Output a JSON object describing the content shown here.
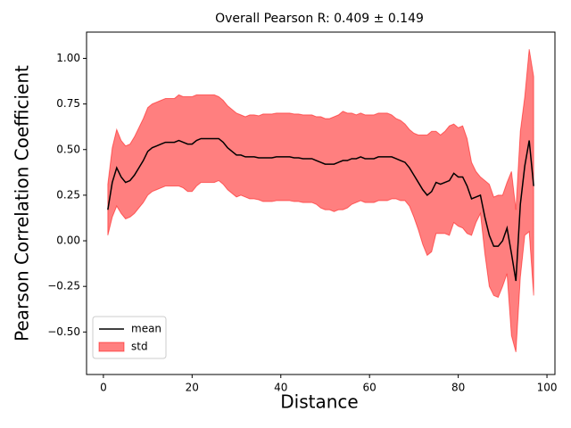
{
  "chart_data": {
    "type": "line",
    "title": "Overall Pearson R: 0.409 ± 0.149",
    "x_label": "Distance",
    "y_label": "Pearson Correlation Coefficient",
    "x": [
      1,
      2,
      3,
      4,
      5,
      6,
      7,
      8,
      9,
      10,
      11,
      12,
      13,
      14,
      15,
      16,
      17,
      18,
      19,
      20,
      21,
      22,
      23,
      24,
      25,
      26,
      27,
      28,
      29,
      30,
      31,
      32,
      33,
      34,
      35,
      36,
      37,
      38,
      39,
      40,
      41,
      42,
      43,
      44,
      45,
      46,
      47,
      48,
      49,
      50,
      51,
      52,
      53,
      54,
      55,
      56,
      57,
      58,
      59,
      60,
      61,
      62,
      63,
      64,
      65,
      66,
      67,
      68,
      69,
      70,
      71,
      72,
      73,
      74,
      75,
      76,
      77,
      78,
      79,
      80,
      81,
      82,
      83,
      84,
      85,
      86,
      87,
      88,
      89,
      90,
      91,
      92,
      93,
      94,
      95,
      96,
      97
    ],
    "series": [
      {
        "name": "mean",
        "color": "#000000",
        "values": [
          0.17,
          0.32,
          0.4,
          0.35,
          0.32,
          0.33,
          0.36,
          0.4,
          0.44,
          0.49,
          0.51,
          0.52,
          0.53,
          0.54,
          0.54,
          0.54,
          0.55,
          0.54,
          0.53,
          0.53,
          0.55,
          0.56,
          0.56,
          0.56,
          0.56,
          0.56,
          0.54,
          0.51,
          0.49,
          0.47,
          0.47,
          0.46,
          0.46,
          0.46,
          0.455,
          0.455,
          0.455,
          0.455,
          0.46,
          0.46,
          0.46,
          0.46,
          0.455,
          0.455,
          0.45,
          0.45,
          0.45,
          0.44,
          0.43,
          0.42,
          0.42,
          0.42,
          0.43,
          0.44,
          0.44,
          0.45,
          0.45,
          0.46,
          0.45,
          0.45,
          0.45,
          0.46,
          0.46,
          0.46,
          0.46,
          0.45,
          0.44,
          0.43,
          0.4,
          0.36,
          0.32,
          0.28,
          0.25,
          0.27,
          0.32,
          0.31,
          0.32,
          0.33,
          0.37,
          0.35,
          0.35,
          0.3,
          0.23,
          0.24,
          0.25,
          0.13,
          0.03,
          -0.03,
          -0.03,
          0.0,
          0.07,
          -0.07,
          -0.22,
          0.2,
          0.41,
          0.55,
          0.3
        ]
      },
      {
        "name": "std",
        "color": "#ff0000",
        "values": [
          0.14,
          0.19,
          0.21,
          0.2,
          0.2,
          0.2,
          0.21,
          0.22,
          0.23,
          0.24,
          0.24,
          0.24,
          0.24,
          0.24,
          0.24,
          0.24,
          0.25,
          0.25,
          0.26,
          0.26,
          0.25,
          0.24,
          0.24,
          0.24,
          0.24,
          0.23,
          0.23,
          0.23,
          0.23,
          0.23,
          0.22,
          0.22,
          0.23,
          0.23,
          0.23,
          0.24,
          0.24,
          0.24,
          0.24,
          0.24,
          0.24,
          0.24,
          0.24,
          0.24,
          0.24,
          0.24,
          0.24,
          0.24,
          0.25,
          0.25,
          0.25,
          0.26,
          0.26,
          0.27,
          0.26,
          0.25,
          0.24,
          0.24,
          0.24,
          0.24,
          0.24,
          0.24,
          0.24,
          0.24,
          0.23,
          0.22,
          0.22,
          0.21,
          0.21,
          0.23,
          0.26,
          0.3,
          0.33,
          0.33,
          0.28,
          0.27,
          0.28,
          0.3,
          0.27,
          0.27,
          0.28,
          0.26,
          0.2,
          0.14,
          0.1,
          0.2,
          0.28,
          0.27,
          0.28,
          0.25,
          0.25,
          0.45,
          0.39,
          0.4,
          0.38,
          0.5,
          0.6
        ]
      }
    ],
    "xlim": [
      -3.8,
      101.8
    ],
    "xticks": [
      0,
      20,
      40,
      60,
      80,
      100
    ],
    "ylim": [
      -0.733,
      1.144
    ],
    "yticks": [
      {
        "value": -0.5,
        "label": "−0.50"
      },
      {
        "value": -0.25,
        "label": "−0.25"
      },
      {
        "value": 0,
        "label": "0.00"
      },
      {
        "value": 0.25,
        "label": "0.25"
      },
      {
        "value": 0.5,
        "label": "0.50"
      },
      {
        "value": 0.75,
        "label": "0.75"
      },
      {
        "value": 1,
        "label": "1.00"
      }
    ],
    "legend": "lower left"
  }
}
